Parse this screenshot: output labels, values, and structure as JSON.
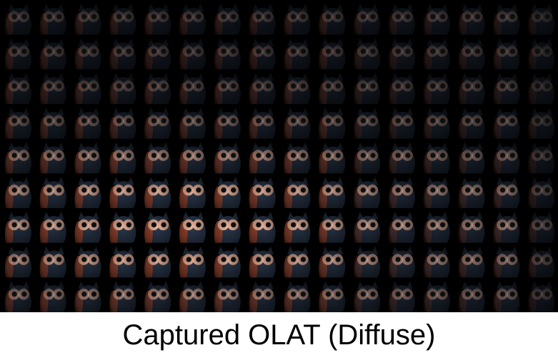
{
  "caption": "Captured OLAT (Diffuse)",
  "grid": {
    "rows": 9,
    "cols": 16
  },
  "colors": {
    "background": "#000000",
    "body": "#2c3a4f",
    "eye_ring": "#f0b79c",
    "side_light": "#b24a2a"
  }
}
